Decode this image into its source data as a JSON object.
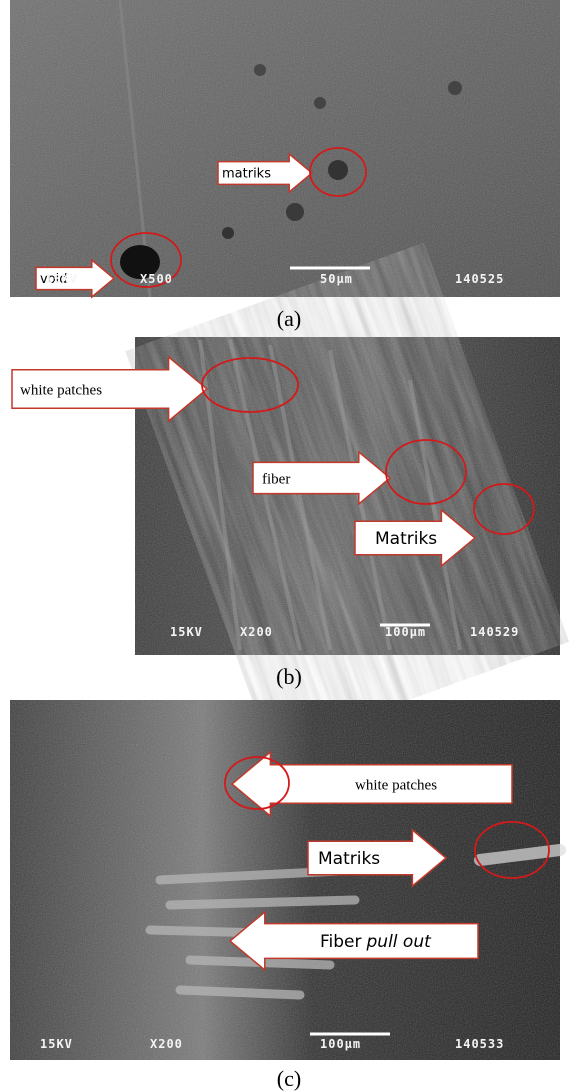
{
  "panels": [
    {
      "caption": "(a)",
      "annotations": [
        {
          "text": "matriks"
        },
        {
          "text": "void"
        }
      ],
      "scale_text": [
        "15KV",
        "X500",
        "50µm",
        "140525"
      ]
    },
    {
      "caption": "(b)",
      "annotations": [
        {
          "text": "white patches"
        },
        {
          "text": "fiber"
        },
        {
          "text": "Matriks"
        }
      ],
      "scale_text": [
        "15KV",
        "X200",
        "100µm",
        "140529"
      ]
    },
    {
      "caption": "(c)",
      "annotations": [
        {
          "text": "white patches"
        },
        {
          "text": "Matriks"
        },
        {
          "text": "Fiber",
          "italic": "pull out"
        }
      ],
      "scale_text": [
        "15KV",
        "X200",
        "100µm",
        "140533"
      ]
    }
  ]
}
